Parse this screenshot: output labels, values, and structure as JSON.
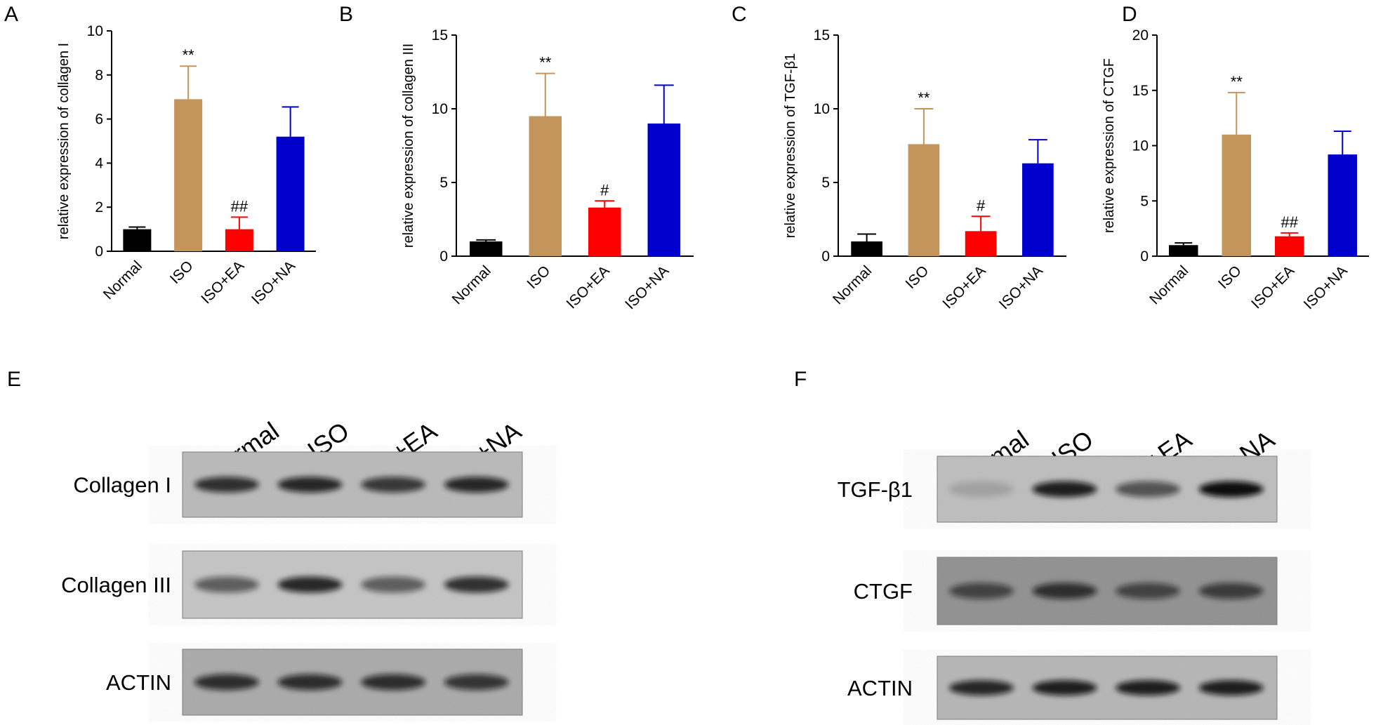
{
  "chart_data": [
    {
      "type": "bar",
      "panel": "A",
      "ylabel": "relative expression of collagen I",
      "categories": [
        "Normal",
        "ISO",
        "ISO+EA",
        "ISO+NA"
      ],
      "values": [
        1.0,
        6.9,
        1.0,
        5.2
      ],
      "errors": [
        0.1,
        1.5,
        0.55,
        1.35
      ],
      "colors": [
        "#000000",
        "#c4955a",
        "#ff0000",
        "#0000cc"
      ],
      "bar_labels": [
        null,
        "**",
        "##",
        null
      ],
      "ylim": [
        0,
        10
      ],
      "yticks": [
        0,
        2,
        4,
        6,
        8,
        10
      ]
    },
    {
      "type": "bar",
      "panel": "B",
      "ylabel": "relative expression of collagen III",
      "categories": [
        "Normal",
        "ISO",
        "ISO+EA",
        "ISO+NA"
      ],
      "values": [
        1.0,
        9.5,
        3.3,
        9.0
      ],
      "errors": [
        0.1,
        2.9,
        0.45,
        2.6
      ],
      "colors": [
        "#000000",
        "#c4955a",
        "#ff0000",
        "#0000cc"
      ],
      "bar_labels": [
        null,
        "**",
        "#",
        null
      ],
      "ylim": [
        0,
        15
      ],
      "yticks": [
        0,
        5,
        10,
        15
      ]
    },
    {
      "type": "bar",
      "panel": "C",
      "ylabel": "relative expression of TGF-β1",
      "categories": [
        "Normal",
        "ISO",
        "ISO+EA",
        "ISO+NA"
      ],
      "values": [
        1.0,
        7.6,
        1.7,
        6.3
      ],
      "errors": [
        0.5,
        2.4,
        1.0,
        1.6
      ],
      "colors": [
        "#000000",
        "#c4955a",
        "#ff0000",
        "#0000cc"
      ],
      "bar_labels": [
        null,
        "**",
        "#",
        null
      ],
      "ylim": [
        0,
        15
      ],
      "yticks": [
        0,
        5,
        10,
        15
      ]
    },
    {
      "type": "bar",
      "panel": "D",
      "ylabel": "relative expression of CTGF",
      "categories": [
        "Normal",
        "ISO",
        "ISO+EA",
        "ISO+NA"
      ],
      "values": [
        1.0,
        11.0,
        1.8,
        9.2
      ],
      "errors": [
        0.2,
        3.8,
        0.3,
        2.1
      ],
      "colors": [
        "#000000",
        "#c4955a",
        "#ff0000",
        "#0000cc"
      ],
      "bar_labels": [
        null,
        "**",
        "##",
        null
      ],
      "ylim": [
        0,
        20
      ],
      "yticks": [
        0,
        5,
        10,
        15,
        20
      ]
    }
  ],
  "blots": [
    {
      "panel": "E",
      "lanes": [
        "Normal",
        "ISO",
        "ISO+EA",
        "ISO+NA"
      ],
      "rows": [
        "Collagen I",
        "Collagen III",
        "ACTIN"
      ]
    },
    {
      "panel": "F",
      "lanes": [
        "Normal",
        "ISO",
        "ISO+EA",
        "ISO+NA"
      ],
      "rows": [
        "TGF-β1",
        "CTGF",
        "ACTIN"
      ]
    }
  ]
}
